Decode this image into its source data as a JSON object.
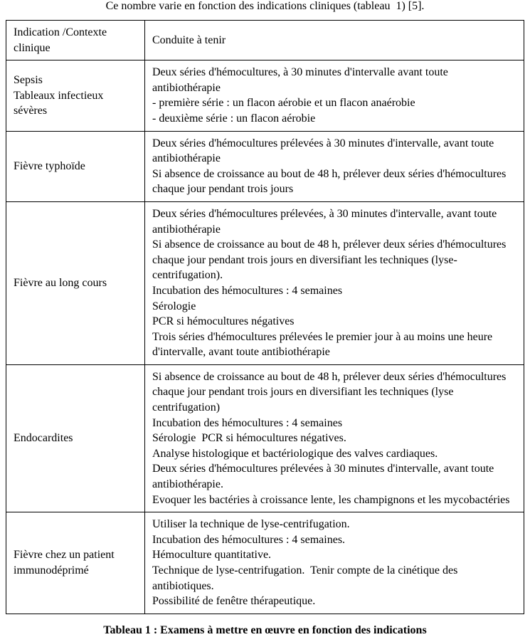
{
  "intro_text": "Ce nombre varie en fonction des indications cliniques (tableau  1) [5].",
  "table": {
    "header": {
      "indication_label": "Indication /Contexte clinique",
      "conduite_label": "Conduite à tenir"
    },
    "rows": [
      {
        "indication": "Sepsis\nTableaux infectieux sévères",
        "conduite": "Deux séries d'hémocultures, à 30 minutes d'intervalle avant toute antibiothérapie\n- première série : un flacon aérobie et un flacon anaérobie\n- deuxième série : un flacon aérobie"
      },
      {
        "indication": "Fièvre typhoïde",
        "conduite": "Deux séries d'hémocultures prélevées à 30 minutes d'intervalle, avant toute antibiothérapie\nSi absence de croissance au bout de 48 h, prélever deux séries d'hémocultures chaque jour pendant trois jours"
      },
      {
        "indication": "Fièvre au long cours",
        "conduite": "Deux séries d'hémocultures prélevées, à 30 minutes d'intervalle, avant toute antibiothérapie\nSi absence de croissance au bout de 48 h, prélever deux séries d'hémocultures chaque jour pendant trois jours en diversifiant les techniques (lyse-centrifugation).\nIncubation des hémocultures : 4 semaines\nSérologie\nPCR si hémocultures négatives\nTrois séries d'hémocultures prélevées le premier jour à au moins une heure d'intervalle, avant toute antibiothérapie"
      },
      {
        "indication": "Endocardites",
        "conduite": "Si absence de croissance au bout de 48 h, prélever deux séries d'hémocultures chaque jour pendant trois jours en diversifiant les techniques (lyse centrifugation)\nIncubation des hémocultures : 4 semaines\nSérologie   PCR si hémocultures négatives.\nAnalyse histologique et bactériologique des valves cardiaques.\nDeux séries d'hémocultures prélevées à 30 minutes d'intervalle, avant toute antibiothérapie.\nEvoquer les bactéries à croissance lente, les champignons et les mycobactéries"
      },
      {
        "indication": "Fièvre chez un patient immunodéprimé",
        "conduite": "Utiliser la technique de lyse-centrifugation.\nIncubation des hémocultures : 4 semaines.\nHémoculture quantitative.\nTechnique de lyse-centrifugation.   Tenir compte de la cinétique des antibiotiques.\nPossibilité de fenêtre thérapeutique."
      }
    ]
  },
  "caption": "Tableau 1 : Examens à mettre en œuvre en fonction des indications"
}
